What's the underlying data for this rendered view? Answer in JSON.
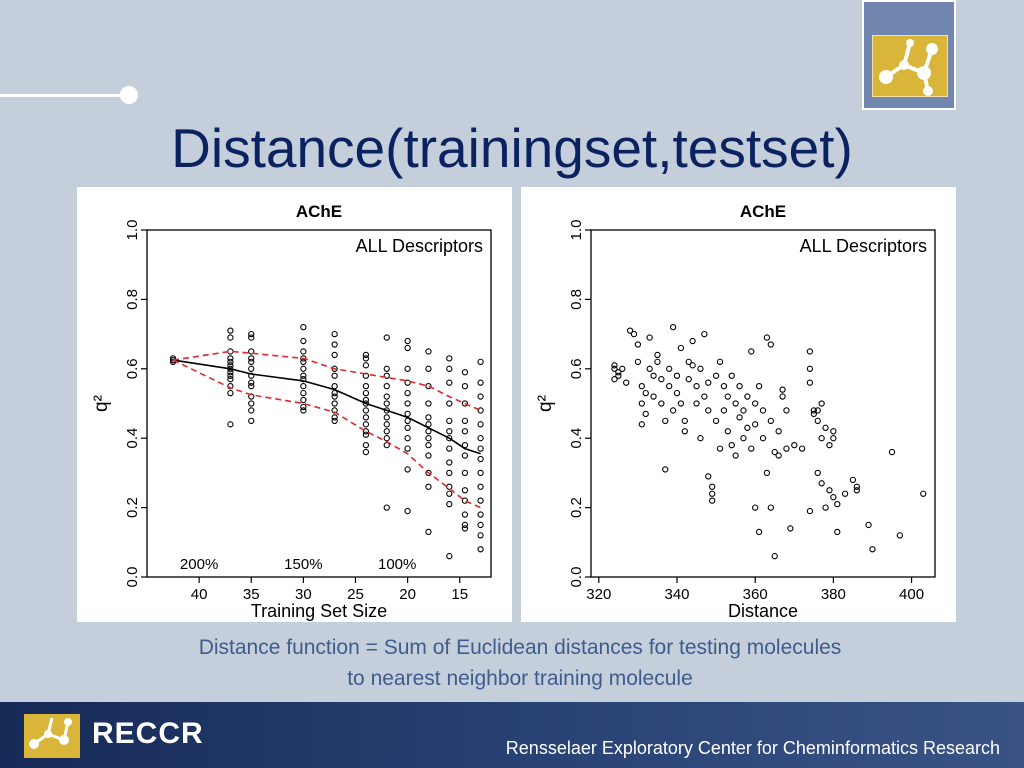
{
  "slide": {
    "title": "Distance(trainingset,testset)",
    "caption_line1": "Distance function = Sum of Euclidean distances for testing molecules",
    "caption_line2": "to nearest neighbor training molecule"
  },
  "footer": {
    "brand": "RECCR",
    "organization": "Rensselaer Exploratory Center for Cheminformatics Research"
  },
  "colors": {
    "title": "#0a2360",
    "caption": "#3e5c8e",
    "footer": "#1f3566",
    "band": "#e0282d"
  },
  "chart_data": [
    {
      "type": "scatter",
      "title": "AChE",
      "annotation": "ALL Descriptors",
      "xlabel": "Training Set Size",
      "ylabel": "q²",
      "xlim": [
        45,
        12
      ],
      "ylim": [
        0,
        1
      ],
      "x_reversed": true,
      "xticks": [
        40,
        35,
        30,
        25,
        20,
        15
      ],
      "yticks": [
        0.0,
        0.2,
        0.4,
        0.6,
        0.8,
        1.0
      ],
      "percent_labels": [
        {
          "x": 40,
          "label": "200%"
        },
        {
          "x": 30,
          "label": "150%"
        },
        {
          "x": 21,
          "label": "100%"
        }
      ],
      "point_groups": [
        {
          "x": 42.5,
          "y": [
            0.63,
            0.625,
            0.62
          ]
        },
        {
          "x": 37,
          "y": [
            0.71,
            0.69,
            0.65,
            0.63,
            0.62,
            0.61,
            0.6,
            0.59,
            0.58,
            0.57,
            0.55,
            0.53,
            0.44
          ]
        },
        {
          "x": 35,
          "y": [
            0.7,
            0.69,
            0.65,
            0.63,
            0.62,
            0.6,
            0.58,
            0.56,
            0.55,
            0.52,
            0.5,
            0.48,
            0.45
          ]
        },
        {
          "x": 30,
          "y": [
            0.72,
            0.68,
            0.65,
            0.63,
            0.62,
            0.6,
            0.58,
            0.57,
            0.55,
            0.53,
            0.51,
            0.49,
            0.48
          ]
        },
        {
          "x": 27,
          "y": [
            0.7,
            0.67,
            0.64,
            0.6,
            0.58,
            0.55,
            0.53,
            0.52,
            0.5,
            0.48,
            0.46,
            0.45
          ]
        },
        {
          "x": 24,
          "y": [
            0.64,
            0.63,
            0.61,
            0.58,
            0.55,
            0.53,
            0.51,
            0.5,
            0.48,
            0.46,
            0.44,
            0.42,
            0.41,
            0.38,
            0.36
          ]
        },
        {
          "x": 22,
          "y": [
            0.69,
            0.6,
            0.58,
            0.55,
            0.52,
            0.5,
            0.48,
            0.46,
            0.44,
            0.42,
            0.4,
            0.38,
            0.2
          ]
        },
        {
          "x": 20,
          "y": [
            0.68,
            0.66,
            0.6,
            0.56,
            0.53,
            0.5,
            0.47,
            0.45,
            0.43,
            0.4,
            0.37,
            0.31,
            0.19
          ]
        },
        {
          "x": 18,
          "y": [
            0.65,
            0.6,
            0.55,
            0.5,
            0.46,
            0.44,
            0.42,
            0.4,
            0.38,
            0.35,
            0.3,
            0.26,
            0.13
          ]
        },
        {
          "x": 16,
          "y": [
            0.63,
            0.6,
            0.56,
            0.5,
            0.45,
            0.42,
            0.4,
            0.37,
            0.33,
            0.3,
            0.26,
            0.24,
            0.21,
            0.06
          ]
        },
        {
          "x": 14.5,
          "y": [
            0.59,
            0.55,
            0.5,
            0.45,
            0.42,
            0.38,
            0.35,
            0.3,
            0.25,
            0.22,
            0.18,
            0.15,
            0.14
          ]
        },
        {
          "x": 13,
          "y": [
            0.62,
            0.56,
            0.52,
            0.48,
            0.44,
            0.4,
            0.37,
            0.34,
            0.3,
            0.26,
            0.22,
            0.18,
            0.15,
            0.12,
            0.08
          ]
        }
      ],
      "series": [
        {
          "name": "mean",
          "style": "solid",
          "color": "#000000",
          "x": [
            42.5,
            37,
            35,
            30,
            27,
            24,
            22,
            20,
            18,
            16,
            14.5,
            13
          ],
          "y": [
            0.625,
            0.6,
            0.585,
            0.565,
            0.54,
            0.5,
            0.48,
            0.46,
            0.43,
            0.4,
            0.37,
            0.355
          ]
        },
        {
          "name": "upper",
          "style": "dashed",
          "color": "#e0282d",
          "x": [
            42.5,
            37,
            35,
            30,
            27,
            24,
            22,
            20,
            18,
            16,
            14.5,
            13
          ],
          "y": [
            0.625,
            0.65,
            0.645,
            0.63,
            0.6,
            0.585,
            0.575,
            0.565,
            0.55,
            0.52,
            0.5,
            0.48
          ]
        },
        {
          "name": "lower",
          "style": "dashed",
          "color": "#e0282d",
          "x": [
            42.5,
            37,
            35,
            30,
            27,
            24,
            22,
            20,
            18,
            16,
            14.5,
            13
          ],
          "y": [
            0.625,
            0.545,
            0.525,
            0.5,
            0.475,
            0.42,
            0.39,
            0.355,
            0.3,
            0.255,
            0.22,
            0.2
          ]
        }
      ]
    },
    {
      "type": "scatter",
      "title": "AChE",
      "annotation": "ALL Descriptors",
      "xlabel": "Distance",
      "ylabel": "q²",
      "xlim": [
        318,
        406
      ],
      "ylim": [
        0,
        1
      ],
      "xticks": [
        320,
        340,
        360,
        380,
        400
      ],
      "yticks": [
        0.0,
        0.2,
        0.4,
        0.6,
        0.8,
        1.0
      ],
      "points": [
        [
          324,
          0.61
        ],
        [
          324,
          0.6
        ],
        [
          325,
          0.59
        ],
        [
          325,
          0.58
        ],
        [
          324,
          0.57
        ],
        [
          326,
          0.6
        ],
        [
          327,
          0.56
        ],
        [
          328,
          0.71
        ],
        [
          329,
          0.7
        ],
        [
          330,
          0.67
        ],
        [
          330,
          0.62
        ],
        [
          331,
          0.55
        ],
        [
          331,
          0.5
        ],
        [
          331,
          0.44
        ],
        [
          332,
          0.47
        ],
        [
          332,
          0.53
        ],
        [
          333,
          0.69
        ],
        [
          333,
          0.6
        ],
        [
          334,
          0.58
        ],
        [
          334,
          0.52
        ],
        [
          335,
          0.64
        ],
        [
          335,
          0.62
        ],
        [
          336,
          0.57
        ],
        [
          336,
          0.5
        ],
        [
          337,
          0.45
        ],
        [
          337,
          0.31
        ],
        [
          338,
          0.6
        ],
        [
          338,
          0.55
        ],
        [
          339,
          0.72
        ],
        [
          339,
          0.48
        ],
        [
          340,
          0.58
        ],
        [
          340,
          0.53
        ],
        [
          341,
          0.66
        ],
        [
          341,
          0.5
        ],
        [
          342,
          0.45
        ],
        [
          342,
          0.42
        ],
        [
          343,
          0.62
        ],
        [
          343,
          0.57
        ],
        [
          344,
          0.68
        ],
        [
          344,
          0.61
        ],
        [
          345,
          0.55
        ],
        [
          345,
          0.5
        ],
        [
          346,
          0.6
        ],
        [
          346,
          0.4
        ],
        [
          347,
          0.7
        ],
        [
          347,
          0.52
        ],
        [
          348,
          0.56
        ],
        [
          348,
          0.48
        ],
        [
          348,
          0.29
        ],
        [
          349,
          0.26
        ],
        [
          349,
          0.24
        ],
        [
          349,
          0.22
        ],
        [
          350,
          0.58
        ],
        [
          350,
          0.45
        ],
        [
          351,
          0.62
        ],
        [
          351,
          0.37
        ],
        [
          352,
          0.55
        ],
        [
          352,
          0.48
        ],
        [
          353,
          0.52
        ],
        [
          353,
          0.42
        ],
        [
          354,
          0.58
        ],
        [
          354,
          0.38
        ],
        [
          355,
          0.5
        ],
        [
          355,
          0.35
        ],
        [
          356,
          0.55
        ],
        [
          356,
          0.46
        ],
        [
          357,
          0.48
        ],
        [
          357,
          0.4
        ],
        [
          358,
          0.52
        ],
        [
          358,
          0.43
        ],
        [
          359,
          0.65
        ],
        [
          359,
          0.37
        ],
        [
          360,
          0.5
        ],
        [
          360,
          0.44
        ],
        [
          360,
          0.2
        ],
        [
          361,
          0.55
        ],
        [
          361,
          0.13
        ],
        [
          362,
          0.48
        ],
        [
          362,
          0.4
        ],
        [
          363,
          0.69
        ],
        [
          363,
          0.3
        ],
        [
          364,
          0.67
        ],
        [
          364,
          0.45
        ],
        [
          364,
          0.2
        ],
        [
          365,
          0.36
        ],
        [
          365,
          0.06
        ],
        [
          366,
          0.42
        ],
        [
          366,
          0.35
        ],
        [
          367,
          0.54
        ],
        [
          367,
          0.52
        ],
        [
          368,
          0.48
        ],
        [
          368,
          0.37
        ],
        [
          369,
          0.14
        ],
        [
          370,
          0.38
        ],
        [
          372,
          0.37
        ],
        [
          374,
          0.65
        ],
        [
          374,
          0.6
        ],
        [
          374,
          0.56
        ],
        [
          374,
          0.19
        ],
        [
          375,
          0.48
        ],
        [
          375,
          0.47
        ],
        [
          376,
          0.48
        ],
        [
          376,
          0.45
        ],
        [
          376,
          0.3
        ],
        [
          377,
          0.5
        ],
        [
          377,
          0.4
        ],
        [
          377,
          0.27
        ],
        [
          378,
          0.43
        ],
        [
          378,
          0.2
        ],
        [
          379,
          0.38
        ],
        [
          379,
          0.25
        ],
        [
          380,
          0.42
        ],
        [
          380,
          0.4
        ],
        [
          380,
          0.23
        ],
        [
          381,
          0.21
        ],
        [
          381,
          0.13
        ],
        [
          383,
          0.24
        ],
        [
          385,
          0.28
        ],
        [
          386,
          0.26
        ],
        [
          386,
          0.25
        ],
        [
          389,
          0.15
        ],
        [
          390,
          0.08
        ],
        [
          395,
          0.36
        ],
        [
          397,
          0.12
        ],
        [
          403,
          0.24
        ]
      ]
    }
  ]
}
